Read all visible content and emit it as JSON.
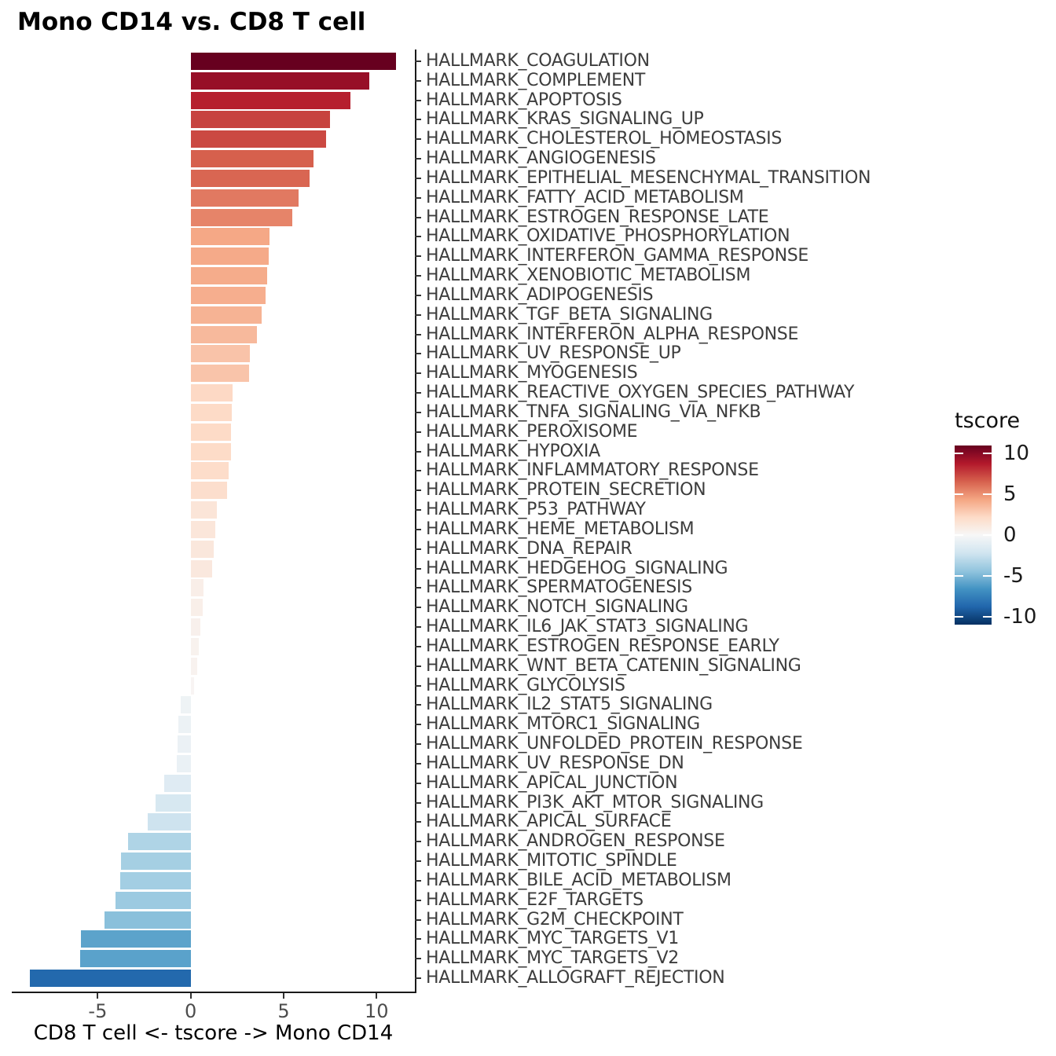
{
  "title": "Mono CD14 vs. CD8 T cell",
  "chart_data": {
    "type": "bar",
    "orientation": "horizontal",
    "title": "Mono CD14 vs. CD8 T cell",
    "xlabel": "CD8 T cell <- tscore -> Mono CD14",
    "x_ticks": [
      -5,
      0,
      5,
      10
    ],
    "xlim": [
      -9.65,
      12.05
    ],
    "grid": false,
    "sorted": "descending",
    "categories": [
      "HALLMARK_COAGULATION",
      "HALLMARK_COMPLEMENT",
      "HALLMARK_APOPTOSIS",
      "HALLMARK_KRAS_SIGNALING_UP",
      "HALLMARK_CHOLESTEROL_HOMEOSTASIS",
      "HALLMARK_ANGIOGENESIS",
      "HALLMARK_EPITHELIAL_MESENCHYMAL_TRANSITION",
      "HALLMARK_FATTY_ACID_METABOLISM",
      "HALLMARK_ESTROGEN_RESPONSE_LATE",
      "HALLMARK_OXIDATIVE_PHOSPHORYLATION",
      "HALLMARK_INTERFERON_GAMMA_RESPONSE",
      "HALLMARK_XENOBIOTIC_METABOLISM",
      "HALLMARK_ADIPOGENESIS",
      "HALLMARK_TGF_BETA_SIGNALING",
      "HALLMARK_INTERFERON_ALPHA_RESPONSE",
      "HALLMARK_UV_RESPONSE_UP",
      "HALLMARK_MYOGENESIS",
      "HALLMARK_REACTIVE_OXYGEN_SPECIES_PATHWAY",
      "HALLMARK_TNFA_SIGNALING_VIA_NFKB",
      "HALLMARK_PEROXISOME",
      "HALLMARK_HYPOXIA",
      "HALLMARK_INFLAMMATORY_RESPONSE",
      "HALLMARK_PROTEIN_SECRETION",
      "HALLMARK_P53_PATHWAY",
      "HALLMARK_HEME_METABOLISM",
      "HALLMARK_DNA_REPAIR",
      "HALLMARK_HEDGEHOG_SIGNALING",
      "HALLMARK_SPERMATOGENESIS",
      "HALLMARK_NOTCH_SIGNALING",
      "HALLMARK_IL6_JAK_STAT3_SIGNALING",
      "HALLMARK_ESTROGEN_RESPONSE_EARLY",
      "HALLMARK_WNT_BETA_CATENIN_SIGNALING",
      "HALLMARK_GLYCOLYSIS",
      "HALLMARK_IL2_STAT5_SIGNALING",
      "HALLMARK_MTORC1_SIGNALING",
      "HALLMARK_UNFOLDED_PROTEIN_RESPONSE",
      "HALLMARK_UV_RESPONSE_DN",
      "HALLMARK_APICAL_JUNCTION",
      "HALLMARK_PI3K_AKT_MTOR_SIGNALING",
      "HALLMARK_APICAL_SURFACE",
      "HALLMARK_ANDROGEN_RESPONSE",
      "HALLMARK_MITOTIC_SPINDLE",
      "HALLMARK_BILE_ACID_METABOLISM",
      "HALLMARK_E2F_TARGETS",
      "HALLMARK_G2M_CHECKPOINT",
      "HALLMARK_MYC_TARGETS_V1",
      "HALLMARK_MYC_TARGETS_V2",
      "HALLMARK_ALLOGRAFT_REJECTION"
    ],
    "values": [
      11.06,
      9.6,
      8.58,
      7.49,
      7.29,
      6.59,
      6.4,
      5.79,
      5.45,
      4.26,
      4.18,
      4.1,
      4.02,
      3.83,
      3.58,
      3.17,
      3.12,
      2.27,
      2.2,
      2.18,
      2.15,
      2.06,
      1.94,
      1.42,
      1.34,
      1.23,
      1.15,
      0.7,
      0.66,
      0.52,
      0.43,
      0.36,
      0.2,
      -0.55,
      -0.65,
      -0.7,
      -0.75,
      -1.41,
      -1.87,
      -2.32,
      -3.38,
      -3.73,
      -3.81,
      -4.05,
      -4.63,
      -5.91,
      -5.96,
      -8.66
    ],
    "legend": {
      "title": "tscore",
      "ticks": [
        10,
        5,
        0,
        -5,
        -10
      ],
      "limits": [
        -11,
        11
      ],
      "position": "right"
    },
    "palette_rdbu_11": [
      "#67001F",
      "#B2182B",
      "#D6604D",
      "#F4A582",
      "#FDDBC7",
      "#F7F7F7",
      "#D1E5F0",
      "#92C5DE",
      "#4393C3",
      "#2166AC",
      "#053061"
    ]
  },
  "colors": {
    "background": "#ffffff",
    "axis_line": "#1a1a1a",
    "axis_tick_label": "#4d4d4d",
    "category_label": "#3d3d3d",
    "title": "#000000",
    "legend_label": "#1a1a1a"
  }
}
